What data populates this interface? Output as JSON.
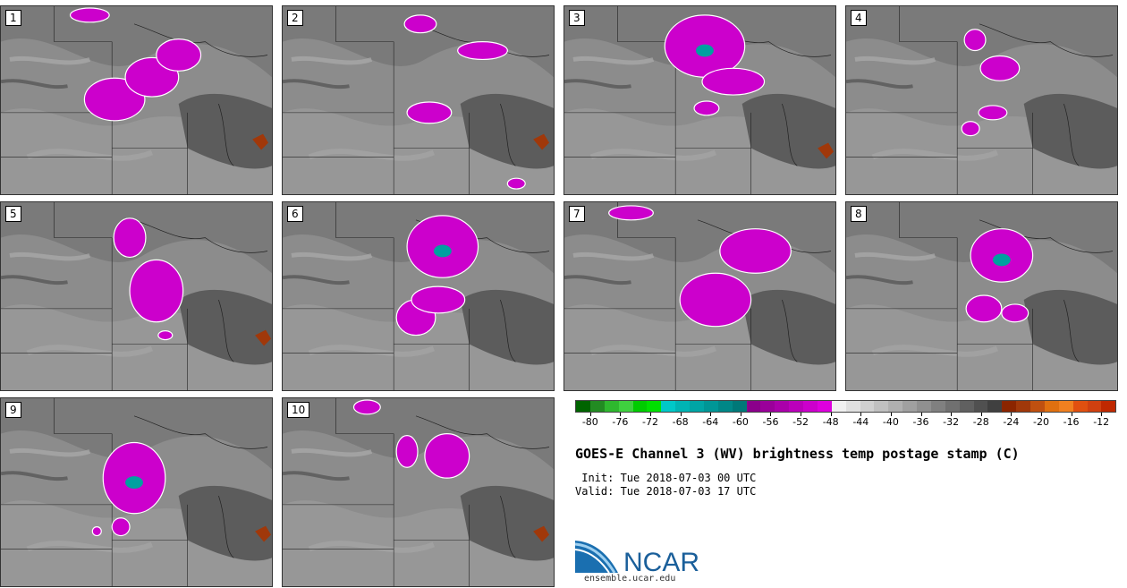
{
  "panels": [
    {
      "label": "1"
    },
    {
      "label": "2"
    },
    {
      "label": "3"
    },
    {
      "label": "4"
    },
    {
      "label": "5"
    },
    {
      "label": "6"
    },
    {
      "label": "7"
    },
    {
      "label": "8"
    },
    {
      "label": "9"
    },
    {
      "label": "10"
    }
  ],
  "colorbar": {
    "colors": [
      "#006400",
      "#228b22",
      "#2eb82e",
      "#3fd13f",
      "#00cc00",
      "#00e000",
      "#00c8c8",
      "#00b4b4",
      "#00a5a5",
      "#009696",
      "#008787",
      "#007878",
      "#8b008b",
      "#9a009a",
      "#aa00aa",
      "#bb00bb",
      "#cc00cc",
      "#dd00dd",
      "#f0f0f0",
      "#e0e0e0",
      "#d0d0d0",
      "#c0c0c0",
      "#b0b0b0",
      "#a0a0a0",
      "#909090",
      "#808080",
      "#707070",
      "#606060",
      "#505050",
      "#404040",
      "#8b2500",
      "#a0380a",
      "#c05010",
      "#e07010",
      "#f08020",
      "#e05010",
      "#d04010",
      "#c02800"
    ],
    "tick_labels": [
      "-80",
      "-76",
      "-72",
      "-68",
      "-64",
      "-60",
      "-56",
      "-52",
      "-48",
      "-44",
      "-40",
      "-36",
      "-32",
      "-28",
      "-24",
      "-20",
      "-16",
      "-12"
    ],
    "vmin": -82,
    "vmax": -10
  },
  "title": "GOES-E Channel 3 (WV) brightness temp postage stamp (C)",
  "init_line": " Init: Tue 2018-07-03 00 UTC",
  "valid_line": "Valid: Tue 2018-07-03 17 UTC",
  "logo": {
    "name": "NCAR",
    "url": "ensemble.ucar.edu"
  },
  "colors": {
    "magenta": "#cc00cc",
    "teal": "#00a0a0",
    "rust": "#a0380a",
    "dark_gray": "#555555",
    "light_gray": "#c8c8c8"
  }
}
